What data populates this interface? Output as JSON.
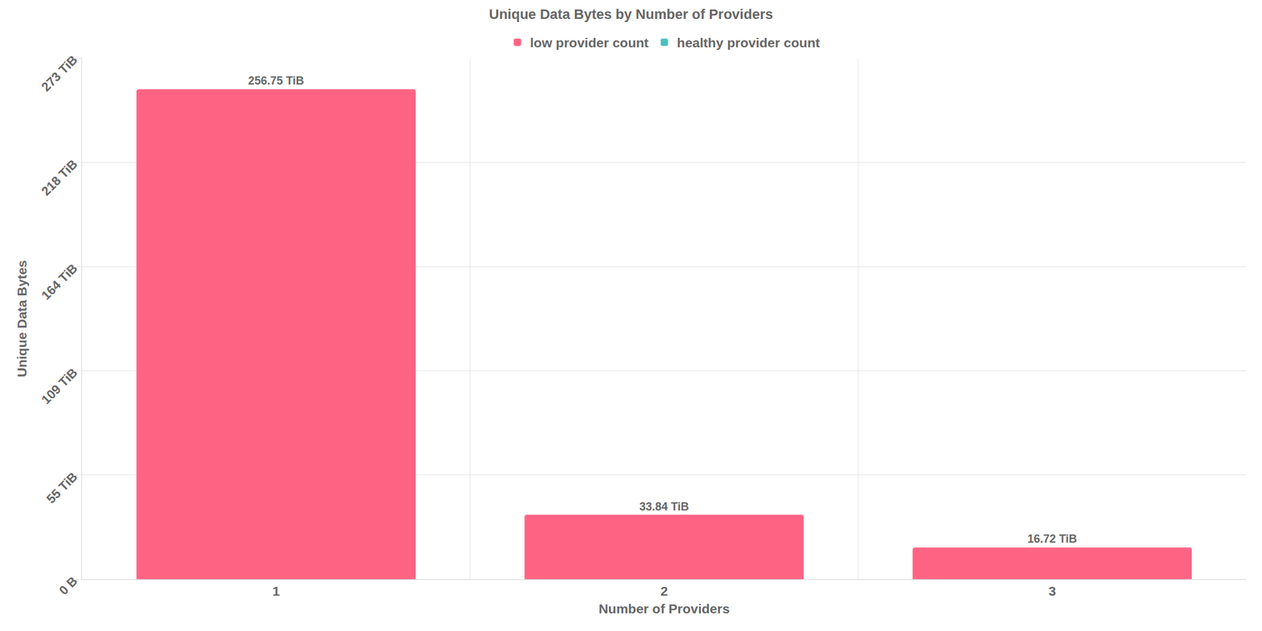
{
  "chart_data": {
    "type": "bar",
    "title": "Unique Data Bytes by Number of Providers",
    "x_label": "Number of Providers",
    "y_label": "Unique Data Bytes",
    "categories": [
      "1",
      "2",
      "3"
    ],
    "series": [
      {
        "name": "low provider count",
        "color": "#ff6384",
        "values": [
          256.75,
          33.84,
          16.72
        ],
        "value_labels": [
          "256.75 TiB",
          "33.84 TiB",
          "16.72 TiB"
        ]
      },
      {
        "name": "healthy provider count",
        "color": "#4bc0c0",
        "values": [
          null,
          null,
          null
        ]
      }
    ],
    "ylim": [
      0,
      273
    ],
    "yticks": [
      {
        "value": 0,
        "label": "0 B"
      },
      {
        "value": 54.6,
        "label": "55 TiB"
      },
      {
        "value": 109.2,
        "label": "109 TiB"
      },
      {
        "value": 163.8,
        "label": "164 TiB"
      },
      {
        "value": 218.4,
        "label": "218 TiB"
      },
      {
        "value": 273,
        "label": "273 TiB"
      }
    ],
    "grid": true,
    "legend": "top",
    "data_labels": true
  }
}
